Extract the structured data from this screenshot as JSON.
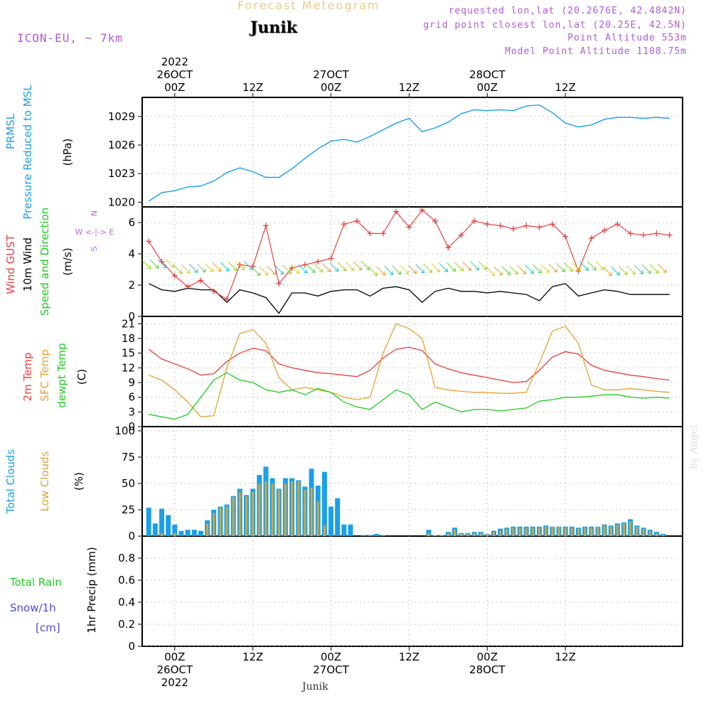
{
  "header": {
    "title": "Forecast Meteogram",
    "station": "Junik",
    "model": "ICON-EU, ~ 7km",
    "requested": "requested lon,lat (20.2676E, 42.4842N)",
    "grid_point": "grid point closest lon,lat (20.25E, 42.5N)",
    "point_altitude": "Point Altitude 553m",
    "model_altitude": "Model Point Altitude 1108.75m"
  },
  "footer": {
    "station": "Junik",
    "credit": "by Angel"
  },
  "colors": {
    "pressure": "#1aa0e8",
    "gust": "#e84040",
    "wind": "#000000",
    "temp2m": "#e84040",
    "sfc": "#e8a030",
    "dew": "#20cc20",
    "total_clouds": "#1aa0e8",
    "low_clouds": "#d4a640",
    "rain": "#20cc20",
    "snow": "#4a4ae8",
    "direction": "#c060e0"
  },
  "chart_data": [
    {
      "type": "line",
      "panel": "pressure",
      "ylabel_lines": [
        "PRMSL",
        "Pressure Reduced to MSL"
      ],
      "unit": "(hPa)",
      "ylim": [
        1019.5,
        1031
      ],
      "yticks": [
        1020,
        1023,
        1026,
        1029
      ],
      "x_hours": [
        -4,
        -2,
        0,
        2,
        4,
        6,
        8,
        10,
        12,
        14,
        16,
        18,
        20,
        22,
        24,
        26,
        28,
        30,
        32,
        34,
        36,
        38,
        40,
        42,
        44,
        46,
        48,
        50,
        52,
        54,
        56,
        58,
        60,
        62,
        64,
        66,
        68,
        70,
        72,
        74,
        76
      ],
      "values": [
        1020.1,
        1021.0,
        1021.2,
        1021.6,
        1021.7,
        1022.2,
        1023.1,
        1023.6,
        1023.2,
        1022.6,
        1022.6,
        1023.5,
        1024.6,
        1025.6,
        1026.4,
        1026.6,
        1026.3,
        1026.9,
        1027.6,
        1028.3,
        1028.8,
        1027.4,
        1027.8,
        1028.4,
        1029.3,
        1029.7,
        1029.6,
        1029.7,
        1029.6,
        1030.1,
        1030.2,
        1029.4,
        1028.3,
        1027.9,
        1028.1,
        1028.7,
        1028.9,
        1028.9,
        1028.8,
        1028.9,
        1028.8
      ]
    },
    {
      "type": "line",
      "panel": "wind",
      "ylabel_lines": [
        "Wind GUST",
        "10m Wind",
        "Speed and Direction"
      ],
      "unit": "(m/s)",
      "direction_key": [
        "N",
        "W <-|-> E",
        "S"
      ],
      "ylim": [
        0,
        7
      ],
      "yticks": [
        0,
        2,
        4,
        6
      ],
      "x_hours": [
        -4,
        -2,
        0,
        2,
        4,
        6,
        8,
        10,
        12,
        14,
        16,
        18,
        20,
        22,
        24,
        26,
        28,
        30,
        32,
        34,
        36,
        38,
        40,
        42,
        44,
        46,
        48,
        50,
        52,
        54,
        56,
        58,
        60,
        62,
        64,
        66,
        68,
        70,
        72,
        74,
        76
      ],
      "series": [
        {
          "name": "Wind GUST",
          "values": [
            4.8,
            3.5,
            2.6,
            1.9,
            2.3,
            1.6,
            1.1,
            3.3,
            3.2,
            5.8,
            2.1,
            3.1,
            3.3,
            3.5,
            3.7,
            5.9,
            6.1,
            5.3,
            5.3,
            6.7,
            5.7,
            6.8,
            6.1,
            4.4,
            5.2,
            6.1,
            5.9,
            5.8,
            5.6,
            5.8,
            5.7,
            5.9,
            5.1,
            2.9,
            5.0,
            5.5,
            5.9,
            5.3,
            5.2,
            5.3,
            5.2
          ]
        },
        {
          "name": "10m Wind",
          "values": [
            2.1,
            1.7,
            1.6,
            1.8,
            1.7,
            1.7,
            0.9,
            1.7,
            1.5,
            1.2,
            0.2,
            1.5,
            1.5,
            1.3,
            1.6,
            1.7,
            1.7,
            1.3,
            1.8,
            1.9,
            1.7,
            0.9,
            1.6,
            1.8,
            1.6,
            1.6,
            1.5,
            1.6,
            1.5,
            1.4,
            1.0,
            1.9,
            2.1,
            1.3,
            1.5,
            1.7,
            1.6,
            1.4,
            1.4,
            1.4,
            1.4
          ]
        }
      ]
    },
    {
      "type": "line",
      "panel": "temperature",
      "ylabel_lines": [
        "2m Temp",
        "SFC Temp",
        "dewpt Temp"
      ],
      "unit": "(C)",
      "ylim": [
        0,
        22.5
      ],
      "yticks": [
        0,
        3,
        6,
        9,
        12,
        15,
        18,
        21
      ],
      "x_hours": [
        -4,
        -2,
        0,
        2,
        4,
        6,
        8,
        10,
        12,
        14,
        16,
        18,
        20,
        22,
        24,
        26,
        28,
        30,
        32,
        34,
        36,
        38,
        40,
        42,
        44,
        46,
        48,
        50,
        52,
        54,
        56,
        58,
        60,
        62,
        64,
        66,
        68,
        70,
        72,
        74,
        76
      ],
      "series": [
        {
          "name": "2m Temp",
          "values": [
            15.8,
            13.8,
            12.8,
            11.8,
            10.5,
            10.8,
            13.3,
            15.0,
            16.0,
            15.5,
            12.8,
            12.0,
            11.5,
            11.0,
            10.8,
            10.5,
            10.2,
            11.5,
            14.0,
            15.8,
            16.2,
            15.5,
            12.8,
            11.8,
            11.0,
            10.5,
            10.0,
            9.5,
            9.0,
            9.2,
            11.5,
            14.2,
            15.3,
            14.8,
            12.5,
            11.5,
            11.0,
            10.5,
            10.2,
            9.8,
            9.5
          ]
        },
        {
          "name": "SFC Temp",
          "values": [
            10.5,
            9.5,
            7.5,
            5.0,
            2.0,
            2.2,
            12.0,
            19.0,
            19.8,
            17.0,
            10.0,
            7.5,
            8.0,
            7.5,
            7.0,
            6.0,
            5.5,
            6.0,
            15.0,
            21.0,
            20.0,
            18.0,
            8.0,
            7.5,
            7.2,
            7.0,
            7.0,
            6.8,
            6.8,
            7.0,
            13.0,
            19.5,
            20.5,
            17.0,
            8.5,
            7.5,
            7.5,
            7.8,
            7.5,
            7.2,
            7.0
          ]
        },
        {
          "name": "dewpt Temp",
          "values": [
            2.5,
            2.0,
            1.5,
            2.5,
            6.0,
            9.5,
            11.0,
            9.5,
            9.0,
            7.5,
            7.0,
            7.5,
            6.5,
            7.8,
            7.0,
            5.0,
            4.0,
            3.5,
            5.5,
            7.5,
            6.5,
            3.5,
            5.0,
            4.0,
            3.0,
            3.5,
            3.5,
            3.2,
            3.5,
            3.8,
            5.2,
            5.5,
            6.0,
            6.0,
            6.2,
            6.5,
            6.5,
            6.0,
            5.8,
            6.0,
            5.8
          ]
        }
      ]
    },
    {
      "type": "bar",
      "panel": "clouds",
      "ylabel_lines": [
        "Total Clouds",
        "Low Clouds"
      ],
      "unit": "(%)",
      "ylim": [
        0,
        104
      ],
      "yticks": [
        0,
        25,
        50,
        75,
        100
      ],
      "x_hours": [
        -4,
        -3,
        -2,
        -1,
        0,
        1,
        2,
        3,
        4,
        5,
        6,
        7,
        8,
        9,
        10,
        11,
        12,
        13,
        14,
        15,
        16,
        17,
        18,
        19,
        20,
        21,
        22,
        23,
        24,
        25,
        26,
        27,
        28,
        29,
        30,
        31,
        32,
        33,
        34,
        35,
        36,
        37,
        38,
        39,
        40,
        41,
        42,
        43,
        44,
        45,
        46,
        47,
        48,
        49,
        50,
        51,
        52,
        53,
        54,
        55,
        56,
        57,
        58,
        59,
        60,
        61,
        62,
        63,
        64,
        65,
        66,
        67,
        68,
        69,
        70,
        71,
        72,
        73,
        74,
        75
      ],
      "series": [
        {
          "name": "Total Clouds",
          "values": [
            27,
            12,
            26,
            20,
            11,
            5,
            6,
            6,
            5,
            15,
            25,
            28,
            30,
            38,
            45,
            39,
            45,
            58,
            66,
            55,
            45,
            55,
            55,
            53,
            47,
            64,
            48,
            61,
            28,
            36,
            11,
            11,
            0,
            1,
            1,
            2,
            1,
            0,
            0,
            0,
            0,
            0,
            0,
            6,
            1,
            1,
            4,
            8,
            3,
            3,
            4,
            4,
            2,
            5,
            7,
            8,
            9,
            9,
            9,
            9,
            9,
            10,
            9,
            9,
            9,
            9,
            8,
            9,
            9,
            9,
            11,
            10,
            12,
            13,
            16,
            10,
            8,
            6,
            4,
            2
          ]
        },
        {
          "name": "Low Clouds",
          "values": [
            0,
            0,
            3,
            0,
            3,
            0,
            0,
            0,
            0,
            12,
            22,
            27,
            28,
            37,
            42,
            38,
            42,
            50,
            52,
            50,
            44,
            50,
            52,
            52,
            44,
            46,
            33,
            10,
            0,
            0,
            0,
            0,
            0,
            0,
            0,
            0,
            0,
            0,
            0,
            0,
            0,
            0,
            0,
            3,
            1,
            1,
            3,
            6,
            3,
            3,
            3,
            3,
            2,
            4,
            5,
            7,
            8,
            8,
            8,
            8,
            8,
            9,
            9,
            9,
            8,
            8,
            7,
            8,
            8,
            9,
            10,
            9,
            11,
            12,
            14,
            9,
            7,
            5,
            3,
            1
          ]
        }
      ]
    },
    {
      "type": "bar",
      "panel": "precip",
      "ylabel_lines": [
        "Total  Rain",
        "Snow/1h",
        "[cm]"
      ],
      "unit": "1hr Precip (mm)",
      "ylim": [
        0,
        1
      ],
      "yticks": [
        0,
        0.2,
        0.4,
        0.6,
        0.8
      ],
      "series": [
        {
          "name": "Total Rain",
          "values": []
        }
      ]
    }
  ],
  "time_axis": {
    "top_ticks": [
      {
        "hour": 0,
        "lines": [
          "2022",
          "26OCT",
          "00Z"
        ]
      },
      {
        "hour": 12,
        "lines": [
          "12Z"
        ]
      },
      {
        "hour": 24,
        "lines": [
          "27OCT",
          "00Z"
        ]
      },
      {
        "hour": 36,
        "lines": [
          "12Z"
        ]
      },
      {
        "hour": 48,
        "lines": [
          "28OCT",
          "00Z"
        ]
      },
      {
        "hour": 60,
        "lines": [
          "12Z"
        ]
      }
    ],
    "bottom_ticks": [
      {
        "hour": 0,
        "lines": [
          "00Z",
          "26OCT",
          "2022"
        ]
      },
      {
        "hour": 12,
        "lines": [
          "12Z"
        ]
      },
      {
        "hour": 24,
        "lines": [
          "00Z",
          "27OCT"
        ]
      },
      {
        "hour": 36,
        "lines": [
          "12Z"
        ]
      },
      {
        "hour": 48,
        "lines": [
          "00Z",
          "28OCT"
        ]
      },
      {
        "hour": 60,
        "lines": [
          "12Z"
        ]
      }
    ]
  }
}
